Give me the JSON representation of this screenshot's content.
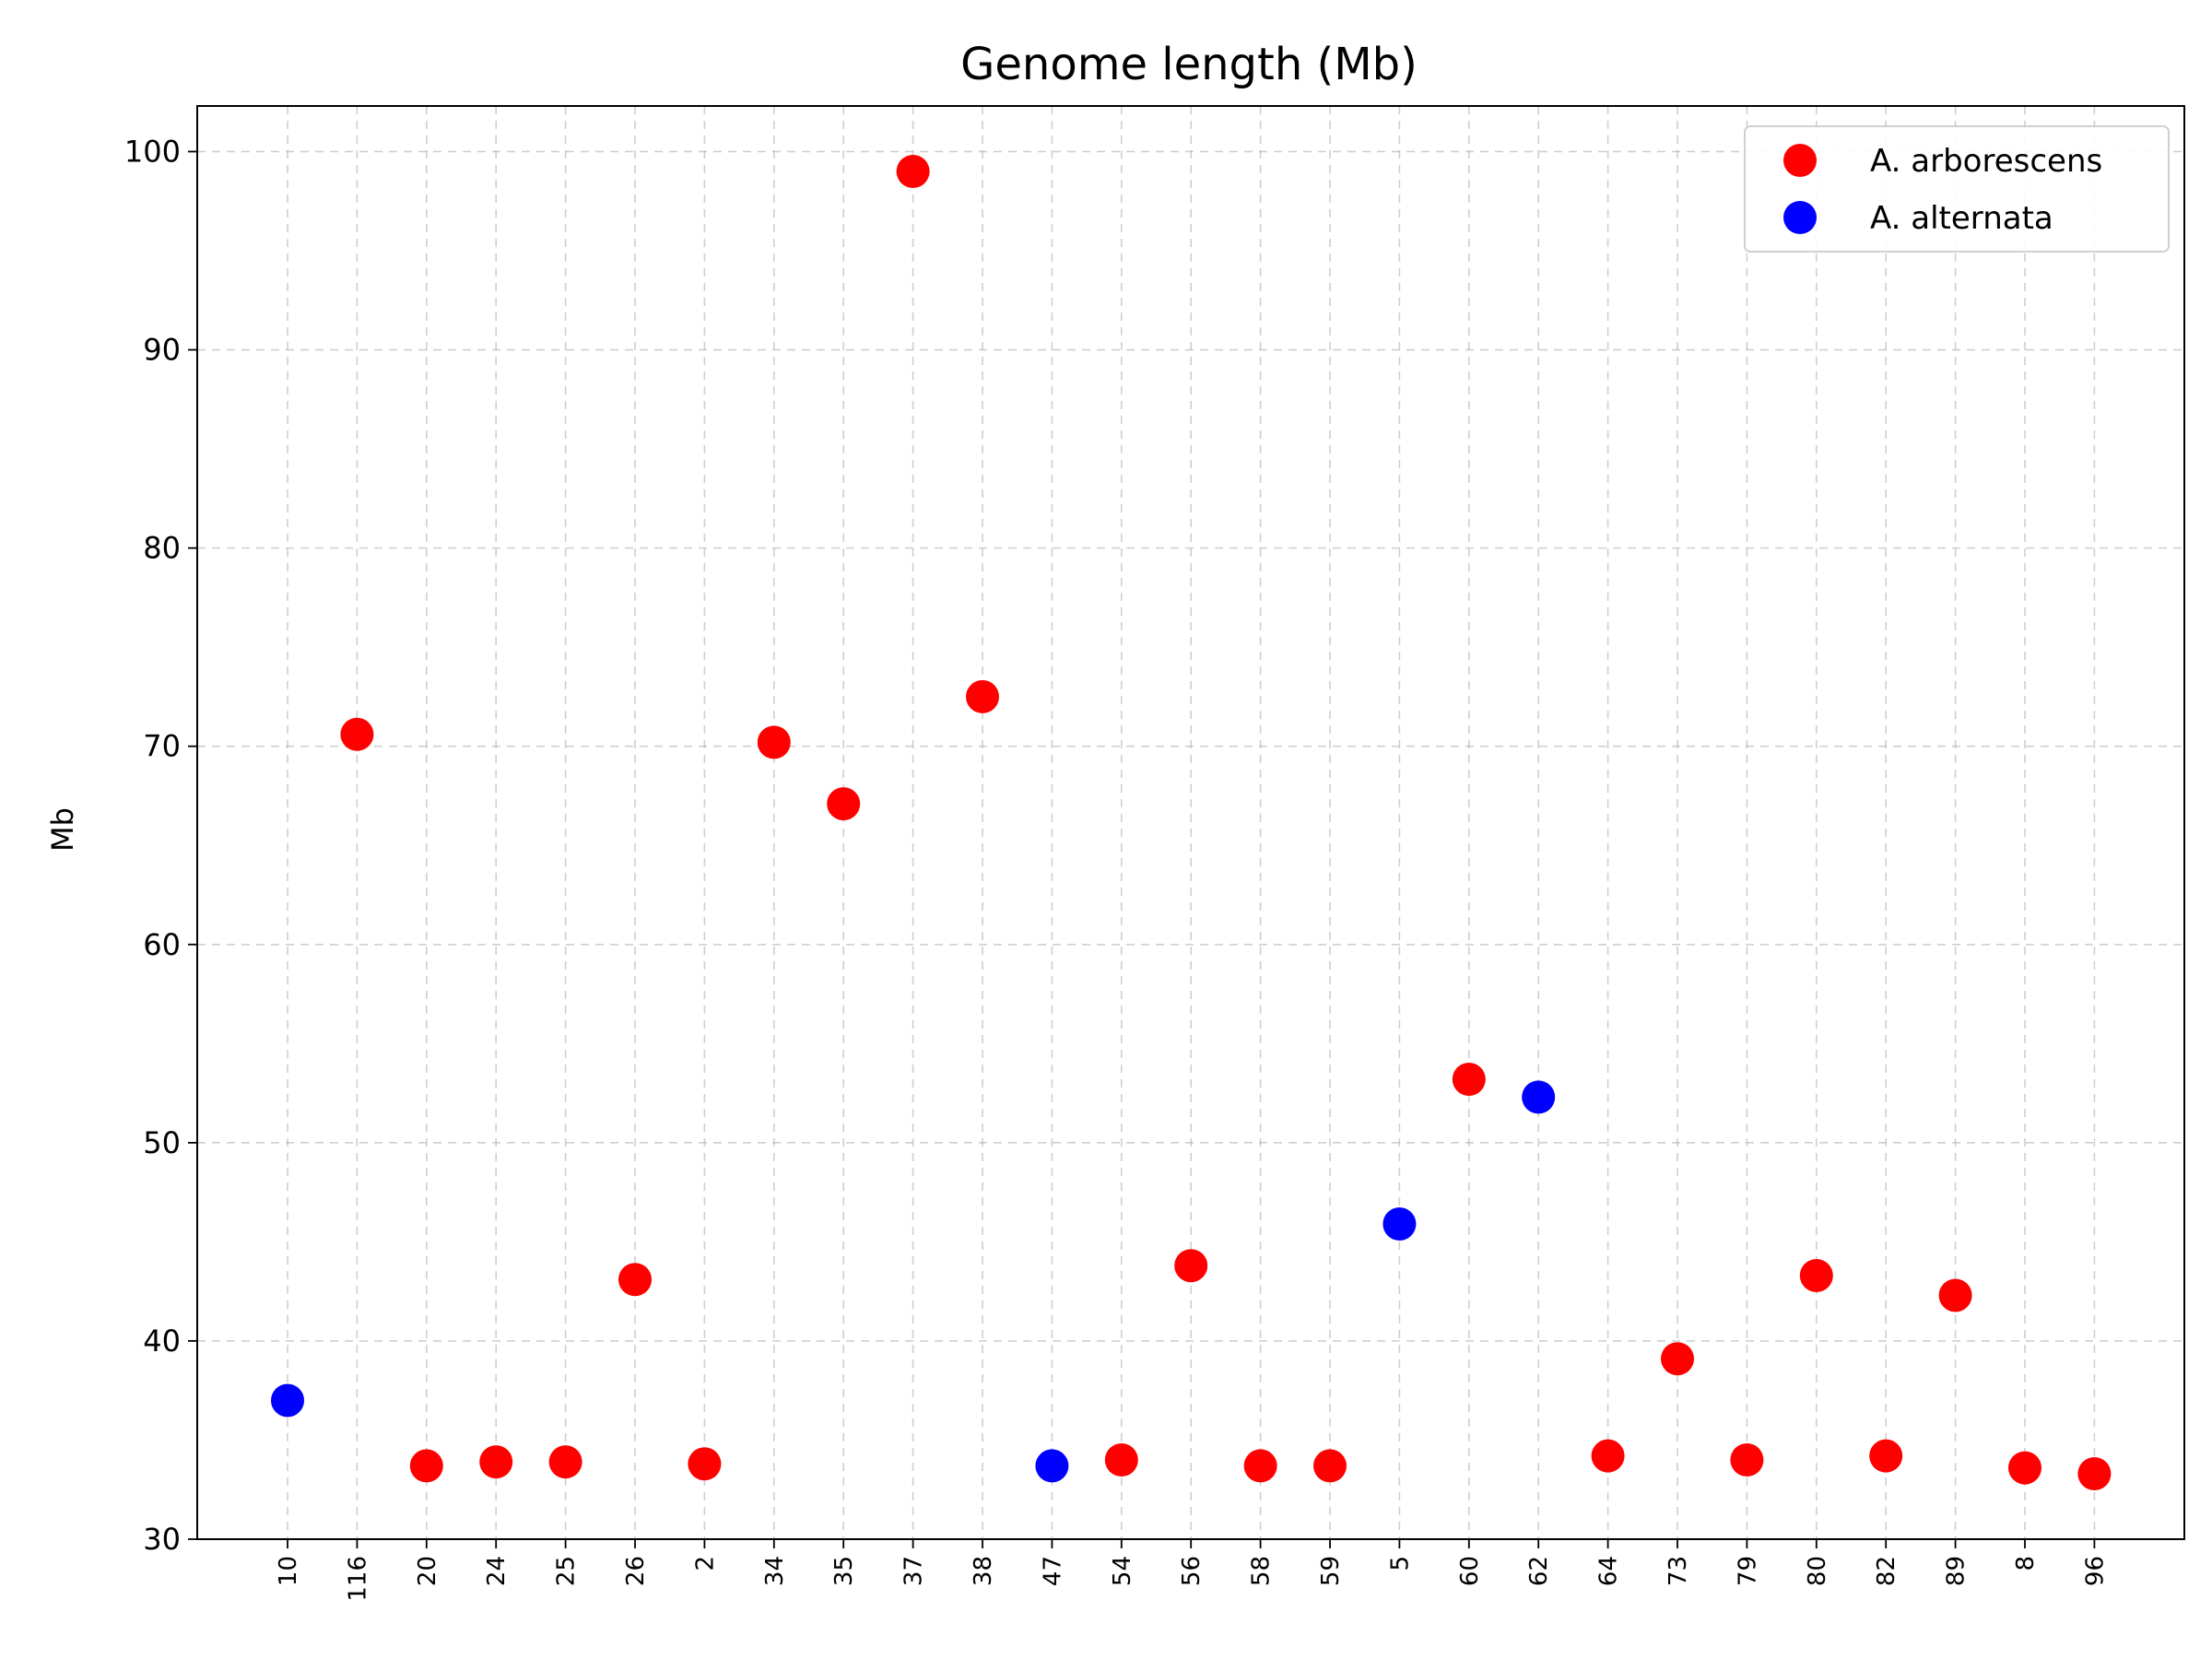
{
  "chart_data": {
    "type": "scatter",
    "title": "Genome length (Mb)",
    "xlabel": "",
    "ylabel": "Mb",
    "ylim": [
      30,
      102.3
    ],
    "yticks": [
      30,
      40,
      50,
      60,
      70,
      80,
      90,
      100
    ],
    "grid": true,
    "legend": "top-right",
    "categories": [
      "10",
      "116",
      "20",
      "24",
      "25",
      "26",
      "2",
      "34",
      "35",
      "37",
      "38",
      "47",
      "54",
      "56",
      "58",
      "59",
      "5",
      "60",
      "62",
      "64",
      "73",
      "79",
      "80",
      "82",
      "89",
      "8",
      "96"
    ],
    "series": [
      {
        "name": "A. arborescens",
        "color": "#ff0000",
        "points": [
          {
            "x": "116",
            "y": 70.6
          },
          {
            "x": "20",
            "y": 33.7
          },
          {
            "x": "24",
            "y": 33.9
          },
          {
            "x": "25",
            "y": 33.9
          },
          {
            "x": "26",
            "y": 43.1
          },
          {
            "x": "2",
            "y": 33.8
          },
          {
            "x": "34",
            "y": 70.2
          },
          {
            "x": "35",
            "y": 67.1
          },
          {
            "x": "37",
            "y": 99.0
          },
          {
            "x": "38",
            "y": 72.5
          },
          {
            "x": "54",
            "y": 34.0
          },
          {
            "x": "56",
            "y": 43.8
          },
          {
            "x": "58",
            "y": 33.7
          },
          {
            "x": "59",
            "y": 33.7
          },
          {
            "x": "60",
            "y": 53.2
          },
          {
            "x": "64",
            "y": 34.2
          },
          {
            "x": "73",
            "y": 39.1
          },
          {
            "x": "79",
            "y": 34.0
          },
          {
            "x": "80",
            "y": 43.3
          },
          {
            "x": "82",
            "y": 34.2
          },
          {
            "x": "89",
            "y": 42.3
          },
          {
            "x": "8",
            "y": 33.6
          },
          {
            "x": "96",
            "y": 33.3
          }
        ]
      },
      {
        "name": "A. alternata",
        "color": "#0000ff",
        "points": [
          {
            "x": "10",
            "y": 37.0
          },
          {
            "x": "47",
            "y": 33.7
          },
          {
            "x": "5",
            "y": 45.9
          },
          {
            "x": "62",
            "y": 52.3
          }
        ]
      }
    ]
  }
}
